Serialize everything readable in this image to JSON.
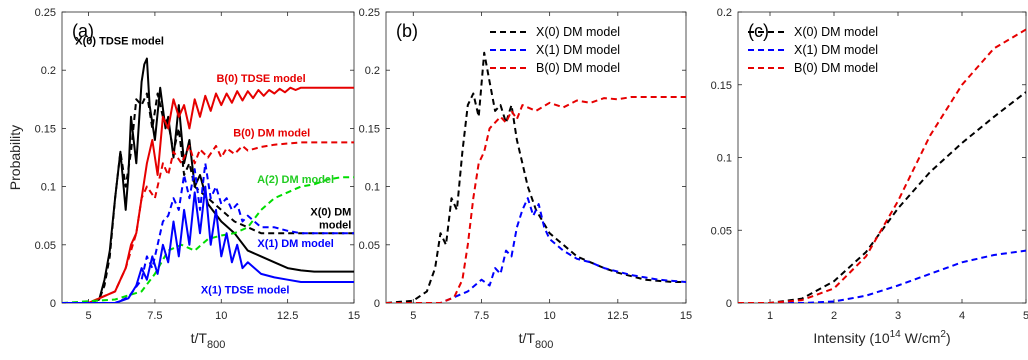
{
  "chart_data": [
    {
      "panel_label": "(a)",
      "type": "line",
      "xlabel": "t/T",
      "xlabel_sub": "800",
      "ylabel": "Probability",
      "xlim": [
        4,
        15
      ],
      "ylim": [
        0,
        0.25
      ],
      "xticks": [
        {
          "v": 5,
          "t": "5"
        },
        {
          "v": 7.5,
          "t": "7.5"
        },
        {
          "v": 10,
          "t": "10"
        },
        {
          "v": 12.5,
          "t": "12.5"
        },
        {
          "v": 15,
          "t": "15"
        }
      ],
      "yticks": [
        {
          "v": 0,
          "t": "0"
        },
        {
          "v": 0.05,
          "t": "0.05"
        },
        {
          "v": 0.1,
          "t": "0.1"
        },
        {
          "v": 0.15,
          "t": "0.15"
        },
        {
          "v": 0.2,
          "t": "0.2"
        },
        {
          "v": 0.25,
          "t": "0.25"
        }
      ],
      "annotations": [
        {
          "text": "X(0) TDSE model",
          "color": "#000000",
          "x": 4.5,
          "y": 0.222
        },
        {
          "text": "B(0) TDSE model",
          "color": "#e60000",
          "x": 11.5,
          "y": 0.19,
          "anchor": "middle"
        },
        {
          "text": "B(0) DM model",
          "color": "#e60000",
          "x": 11.9,
          "y": 0.143,
          "anchor": "middle"
        },
        {
          "text": "A(2) DM model",
          "color": "#22cc22",
          "x": 12.8,
          "y": 0.103,
          "anchor": "middle"
        },
        {
          "text": "X(0) DM",
          "color": "#000000",
          "x": 14.9,
          "y": 0.075,
          "anchor": "end"
        },
        {
          "text": "model",
          "color": "#000000",
          "x": 14.9,
          "y": 0.064,
          "anchor": "end"
        },
        {
          "text": "X(1) DM model",
          "color": "#0000ff",
          "x": 12.8,
          "y": 0.048,
          "anchor": "middle"
        },
        {
          "text": "X(1) TDSE model",
          "color": "#0000ff",
          "x": 10.9,
          "y": 0.008,
          "anchor": "middle"
        }
      ],
      "series": [
        {
          "color": "#000000",
          "dash": false,
          "x": [
            4,
            5,
            5.4,
            5.6,
            5.8,
            6,
            6.2,
            6.4,
            6.5,
            6.6,
            6.8,
            7,
            7.1,
            7.2,
            7.3,
            7.5,
            7.7,
            7.9,
            8,
            8.2,
            8.4,
            8.6,
            8.8,
            9,
            9.2,
            9.5,
            10,
            10.5,
            11,
            11.5,
            12,
            12.5,
            13,
            13.5,
            14,
            15
          ],
          "y": [
            0,
            0,
            0.003,
            0.02,
            0.045,
            0.09,
            0.13,
            0.08,
            0.11,
            0.16,
            0.12,
            0.19,
            0.205,
            0.21,
            0.17,
            0.14,
            0.185,
            0.15,
            0.16,
            0.125,
            0.17,
            0.12,
            0.14,
            0.1,
            0.11,
            0.085,
            0.07,
            0.06,
            0.045,
            0.04,
            0.035,
            0.03,
            0.028,
            0.027,
            0.027,
            0.027
          ]
        },
        {
          "color": "#000000",
          "dash": true,
          "x": [
            4,
            5,
            5.4,
            5.6,
            5.8,
            6,
            6.2,
            6.4,
            6.6,
            6.8,
            7,
            7.2,
            7.4,
            7.6,
            7.8,
            8,
            8.2,
            8.4,
            8.6,
            8.8,
            9,
            9.5,
            10,
            10.5,
            11,
            11.5,
            12,
            12.5,
            13,
            13.5,
            14,
            14.5,
            15
          ],
          "y": [
            0,
            0,
            0.003,
            0.015,
            0.04,
            0.09,
            0.13,
            0.1,
            0.13,
            0.175,
            0.17,
            0.18,
            0.15,
            0.18,
            0.16,
            0.155,
            0.13,
            0.15,
            0.11,
            0.12,
            0.1,
            0.09,
            0.08,
            0.07,
            0.065,
            0.06,
            0.06,
            0.06,
            0.06,
            0.06,
            0.06,
            0.06,
            0.06
          ]
        },
        {
          "color": "#e60000",
          "dash": false,
          "x": [
            4,
            5,
            6,
            6.2,
            6.4,
            6.6,
            6.8,
            7,
            7.2,
            7.4,
            7.6,
            7.8,
            8,
            8.2,
            8.4,
            8.6,
            8.8,
            9,
            9.2,
            9.4,
            9.6,
            9.8,
            10,
            10.2,
            10.4,
            10.6,
            10.8,
            11,
            11.2,
            11.4,
            11.6,
            11.8,
            12,
            12.2,
            12.4,
            12.6,
            12.8,
            13,
            13.5,
            14,
            15
          ],
          "y": [
            0,
            0,
            0.01,
            0.02,
            0.03,
            0.05,
            0.06,
            0.09,
            0.12,
            0.14,
            0.11,
            0.16,
            0.15,
            0.175,
            0.16,
            0.17,
            0.15,
            0.175,
            0.16,
            0.178,
            0.165,
            0.18,
            0.17,
            0.18,
            0.172,
            0.182,
            0.174,
            0.182,
            0.176,
            0.183,
            0.178,
            0.183,
            0.18,
            0.184,
            0.181,
            0.185,
            0.183,
            0.185,
            0.185,
            0.185,
            0.185
          ]
        },
        {
          "color": "#e60000",
          "dash": true,
          "x": [
            4,
            5,
            6,
            6.4,
            6.8,
            7,
            7.2,
            7.5,
            7.8,
            8,
            8.2,
            8.5,
            8.8,
            9,
            9.2,
            9.5,
            9.8,
            10,
            10.2,
            10.5,
            10.8,
            11,
            11.5,
            12,
            12.5,
            13,
            14,
            15
          ],
          "y": [
            0,
            0,
            0.01,
            0.03,
            0.06,
            0.09,
            0.1,
            0.09,
            0.12,
            0.11,
            0.13,
            0.12,
            0.135,
            0.12,
            0.132,
            0.125,
            0.135,
            0.125,
            0.133,
            0.128,
            0.135,
            0.131,
            0.134,
            0.136,
            0.137,
            0.138,
            0.138,
            0.138
          ]
        },
        {
          "color": "#00dd00",
          "dash": true,
          "x": [
            4,
            6,
            7,
            7.5,
            8,
            8.5,
            9,
            9.5,
            10,
            10.5,
            11,
            11.5,
            12,
            12.5,
            13,
            13.5,
            14,
            14.5,
            15
          ],
          "y": [
            0,
            0.003,
            0.01,
            0.025,
            0.045,
            0.05,
            0.045,
            0.055,
            0.058,
            0.06,
            0.065,
            0.08,
            0.09,
            0.095,
            0.1,
            0.102,
            0.106,
            0.108,
            0.108
          ]
        },
        {
          "color": "#0000ff",
          "dash": true,
          "x": [
            4,
            6,
            6.5,
            7,
            7.2,
            7.4,
            7.6,
            7.8,
            8,
            8.2,
            8.4,
            8.6,
            8.8,
            9,
            9.2,
            9.4,
            9.6,
            9.8,
            10,
            10.2,
            10.4,
            10.6,
            10.8,
            11,
            11.5,
            12,
            12.5,
            13,
            13.5,
            14,
            14.5,
            15
          ],
          "y": [
            0,
            0,
            0.005,
            0.02,
            0.04,
            0.03,
            0.05,
            0.07,
            0.075,
            0.09,
            0.08,
            0.11,
            0.09,
            0.115,
            0.08,
            0.12,
            0.09,
            0.1,
            0.085,
            0.09,
            0.08,
            0.085,
            0.07,
            0.075,
            0.065,
            0.065,
            0.062,
            0.06,
            0.06,
            0.06,
            0.06,
            0.06
          ]
        },
        {
          "color": "#0000ff",
          "dash": false,
          "x": [
            4,
            6,
            6.5,
            6.8,
            7,
            7.2,
            7.4,
            7.6,
            7.8,
            8,
            8.2,
            8.4,
            8.6,
            8.8,
            9,
            9.2,
            9.4,
            9.6,
            9.8,
            10,
            10.2,
            10.4,
            10.6,
            10.8,
            11,
            11.5,
            12,
            12.5,
            13,
            13.5,
            14,
            14.5,
            15
          ],
          "y": [
            0,
            0,
            0.004,
            0.015,
            0.03,
            0.02,
            0.04,
            0.025,
            0.05,
            0.035,
            0.07,
            0.04,
            0.08,
            0.05,
            0.095,
            0.06,
            0.1,
            0.05,
            0.08,
            0.04,
            0.06,
            0.035,
            0.05,
            0.03,
            0.035,
            0.025,
            0.022,
            0.02,
            0.018,
            0.018,
            0.018,
            0.018,
            0.018
          ]
        }
      ]
    },
    {
      "panel_label": "(b)",
      "type": "line",
      "xlabel": "t/T",
      "xlabel_sub": "800",
      "xlim": [
        4,
        15
      ],
      "ylim": [
        0,
        0.25
      ],
      "xticks": [
        {
          "v": 5,
          "t": "5"
        },
        {
          "v": 7.5,
          "t": "7.5"
        },
        {
          "v": 10,
          "t": "10"
        },
        {
          "v": 12.5,
          "t": "12.5"
        },
        {
          "v": 15,
          "t": "15"
        }
      ],
      "yticks": [
        {
          "v": 0,
          "t": "0"
        },
        {
          "v": 0.05,
          "t": "0.05"
        },
        {
          "v": 0.1,
          "t": "0.1"
        },
        {
          "v": 0.15,
          "t": "0.15"
        },
        {
          "v": 0.2,
          "t": "0.2"
        },
        {
          "v": 0.25,
          "t": "0.25"
        }
      ],
      "legend": "top-right",
      "series": [
        {
          "name": "X(0) DM model",
          "color": "#000000",
          "dash": true,
          "x": [
            4,
            5,
            5.5,
            5.8,
            6,
            6.2,
            6.4,
            6.6,
            6.8,
            7,
            7.2,
            7.4,
            7.6,
            7.8,
            8,
            8.2,
            8.4,
            8.6,
            8.8,
            9,
            9.2,
            9.5,
            10,
            10.5,
            11,
            11.5,
            12,
            12.5,
            13,
            13.5,
            14,
            14.5,
            15
          ],
          "y": [
            0,
            0.002,
            0.01,
            0.03,
            0.06,
            0.05,
            0.09,
            0.08,
            0.13,
            0.17,
            0.18,
            0.16,
            0.215,
            0.19,
            0.165,
            0.17,
            0.155,
            0.17,
            0.14,
            0.12,
            0.1,
            0.08,
            0.06,
            0.05,
            0.04,
            0.035,
            0.03,
            0.026,
            0.023,
            0.02,
            0.019,
            0.018,
            0.018
          ]
        },
        {
          "name": "X(1) DM model",
          "color": "#0000ff",
          "dash": true,
          "x": [
            4,
            6,
            6.5,
            7,
            7.5,
            7.8,
            8,
            8.2,
            8.4,
            8.6,
            8.8,
            9,
            9.2,
            9.4,
            9.6,
            9.8,
            10,
            10.5,
            11,
            11.5,
            12,
            12.5,
            13,
            13.5,
            14,
            14.5,
            15
          ],
          "y": [
            0,
            0,
            0.005,
            0.01,
            0.02,
            0.015,
            0.03,
            0.025,
            0.045,
            0.04,
            0.065,
            0.08,
            0.09,
            0.075,
            0.085,
            0.065,
            0.055,
            0.045,
            0.038,
            0.035,
            0.03,
            0.027,
            0.024,
            0.022,
            0.02,
            0.019,
            0.018
          ]
        },
        {
          "name": "B(0) DM model",
          "color": "#e60000",
          "dash": true,
          "x": [
            4,
            6,
            6.5,
            6.8,
            7,
            7.2,
            7.4,
            7.6,
            7.8,
            8,
            8.2,
            8.4,
            8.6,
            8.8,
            9,
            9.5,
            10,
            10.5,
            11,
            11.5,
            12,
            12.5,
            13,
            13.5,
            14,
            15
          ],
          "y": [
            0,
            0,
            0.005,
            0.02,
            0.05,
            0.09,
            0.12,
            0.13,
            0.15,
            0.155,
            0.16,
            0.155,
            0.165,
            0.158,
            0.17,
            0.165,
            0.172,
            0.168,
            0.174,
            0.172,
            0.176,
            0.175,
            0.177,
            0.177,
            0.177,
            0.177
          ]
        }
      ]
    },
    {
      "panel_label": "(c)",
      "type": "line",
      "xlabel": "Intensity (10",
      "xlabel_sup": "14",
      "xlabel_mid": " W/cm",
      "xlabel_sup2": "2",
      "xlabel_end": ")",
      "xlim": [
        0.5,
        5
      ],
      "ylim": [
        0,
        0.2
      ],
      "xticks": [
        {
          "v": 1,
          "t": "1"
        },
        {
          "v": 2,
          "t": "2"
        },
        {
          "v": 3,
          "t": "3"
        },
        {
          "v": 4,
          "t": "4"
        },
        {
          "v": 5,
          "t": "5"
        }
      ],
      "yticks": [
        {
          "v": 0,
          "t": "0"
        },
        {
          "v": 0.05,
          "t": "0.05"
        },
        {
          "v": 0.1,
          "t": "0.1"
        },
        {
          "v": 0.15,
          "t": "0.15"
        },
        {
          "v": 0.2,
          "t": "0.2"
        }
      ],
      "legend": "top-left",
      "series": [
        {
          "name": "X(0) DM model",
          "color": "#000000",
          "dash": true,
          "x": [
            0.5,
            1,
            1.5,
            2,
            2.5,
            3,
            3.5,
            4,
            4.5,
            5
          ],
          "y": [
            0,
            0,
            0.003,
            0.015,
            0.035,
            0.065,
            0.09,
            0.11,
            0.128,
            0.145
          ]
        },
        {
          "name": "X(1) DM model",
          "color": "#0000ff",
          "dash": true,
          "x": [
            0.5,
            1,
            1.5,
            2,
            2.5,
            3,
            3.5,
            4,
            4.5,
            5
          ],
          "y": [
            0,
            0,
            0,
            0.001,
            0.005,
            0.012,
            0.02,
            0.028,
            0.033,
            0.036
          ]
        },
        {
          "name": "B(0) DM model",
          "color": "#e60000",
          "dash": true,
          "x": [
            0.5,
            1,
            1.5,
            2,
            2.5,
            3,
            3.5,
            4,
            4.5,
            5
          ],
          "y": [
            0,
            0,
            0.002,
            0.01,
            0.032,
            0.07,
            0.115,
            0.15,
            0.175,
            0.188
          ]
        }
      ]
    }
  ]
}
